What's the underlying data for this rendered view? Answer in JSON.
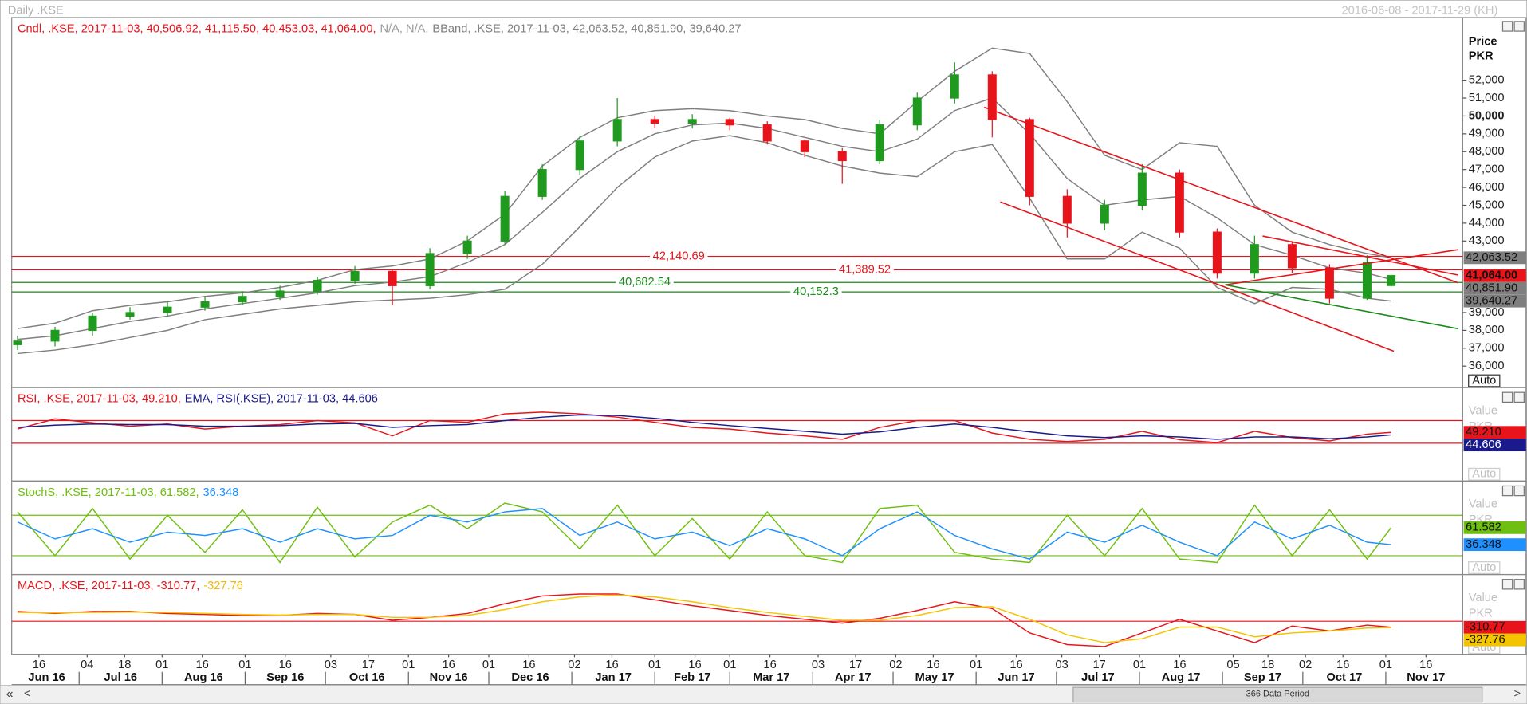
{
  "header": {
    "title": "Daily .KSE",
    "range": "2016-06-08 - 2017-11-29 (KH)"
  },
  "footer": {
    "data_period": "366 Data Period",
    "first": "«",
    "prev": "<",
    "next": ">"
  },
  "x_axis": {
    "xlim": [
      "2016-06-08",
      "2017-11-29"
    ],
    "x": [
      "2016-06-08",
      "2016-06-22",
      "2016-07-06",
      "2016-07-20",
      "2016-08-03",
      "2016-08-17",
      "2016-08-31",
      "2016-09-14",
      "2016-09-28",
      "2016-10-12",
      "2016-10-26",
      "2016-11-09",
      "2016-11-23",
      "2016-12-07",
      "2016-12-21",
      "2017-01-04",
      "2017-01-18",
      "2017-02-01",
      "2017-02-15",
      "2017-03-01",
      "2017-03-15",
      "2017-03-29",
      "2017-04-12",
      "2017-04-26",
      "2017-05-10",
      "2017-05-24",
      "2017-06-07",
      "2017-06-21",
      "2017-07-05",
      "2017-07-19",
      "2017-08-02",
      "2017-08-16",
      "2017-08-30",
      "2017-09-13",
      "2017-09-27",
      "2017-10-11",
      "2017-10-25",
      "2017-11-03"
    ],
    "xticks": [
      {
        "value": "2016-06-16",
        "label": "16"
      },
      {
        "value": "2016-07-04",
        "label": "04"
      },
      {
        "value": "2016-07-18",
        "label": "18"
      },
      {
        "value": "2016-08-01",
        "label": "01"
      },
      {
        "value": "2016-08-16",
        "label": "16"
      },
      {
        "value": "2016-09-01",
        "label": "01"
      },
      {
        "value": "2016-09-16",
        "label": "16"
      },
      {
        "value": "2016-10-03",
        "label": "03"
      },
      {
        "value": "2016-10-17",
        "label": "17"
      },
      {
        "value": "2016-11-01",
        "label": "01"
      },
      {
        "value": "2016-11-16",
        "label": "16"
      },
      {
        "value": "2016-12-01",
        "label": "01"
      },
      {
        "value": "2016-12-16",
        "label": "16"
      },
      {
        "value": "2017-01-02",
        "label": "02"
      },
      {
        "value": "2017-01-16",
        "label": "16"
      },
      {
        "value": "2017-02-01",
        "label": "01"
      },
      {
        "value": "2017-02-16",
        "label": "16"
      },
      {
        "value": "2017-03-01",
        "label": "01"
      },
      {
        "value": "2017-03-16",
        "label": "16"
      },
      {
        "value": "2017-04-03",
        "label": "03"
      },
      {
        "value": "2017-04-17",
        "label": "17"
      },
      {
        "value": "2017-05-02",
        "label": "02"
      },
      {
        "value": "2017-05-16",
        "label": "16"
      },
      {
        "value": "2017-06-01",
        "label": "01"
      },
      {
        "value": "2017-06-16",
        "label": "16"
      },
      {
        "value": "2017-07-03",
        "label": "03"
      },
      {
        "value": "2017-07-17",
        "label": "17"
      },
      {
        "value": "2017-08-01",
        "label": "01"
      },
      {
        "value": "2017-08-16",
        "label": "16"
      },
      {
        "value": "2017-09-05",
        "label": "05"
      },
      {
        "value": "2017-09-18",
        "label": "18"
      },
      {
        "value": "2017-10-02",
        "label": "02"
      },
      {
        "value": "2017-10-16",
        "label": "16"
      },
      {
        "value": "2017-11-01",
        "label": "01"
      },
      {
        "value": "2017-11-16",
        "label": "16"
      }
    ],
    "month_labels": [
      {
        "value": "2016-06",
        "label": "Jun 16"
      },
      {
        "value": "2016-07",
        "label": "Jul 16"
      },
      {
        "value": "2016-08",
        "label": "Aug 16"
      },
      {
        "value": "2016-09",
        "label": "Sep 16"
      },
      {
        "value": "2016-10",
        "label": "Oct 16"
      },
      {
        "value": "2016-11",
        "label": "Nov 16"
      },
      {
        "value": "2016-12",
        "label": "Dec 16"
      },
      {
        "value": "2017-01",
        "label": "Jan 17"
      },
      {
        "value": "2017-02",
        "label": "Feb 17"
      },
      {
        "value": "2017-03",
        "label": "Mar 17"
      },
      {
        "value": "2017-04",
        "label": "Apr 17"
      },
      {
        "value": "2017-05",
        "label": "May 17"
      },
      {
        "value": "2017-06",
        "label": "Jun 17"
      },
      {
        "value": "2017-07",
        "label": "Jul 17"
      },
      {
        "value": "2017-08",
        "label": "Aug 17"
      },
      {
        "value": "2017-09",
        "label": "Sep 17"
      },
      {
        "value": "2017-10",
        "label": "Oct 17"
      },
      {
        "value": "2017-11",
        "label": "Nov 17"
      }
    ]
  },
  "chart_data": [
    {
      "type": "candlestick",
      "legend": [
        {
          "text": "Cndl, .KSE, 2017-11-03, 40,506.92, 41,115.50, 40,453.03, 41,064.00,",
          "color": "#e8141b"
        },
        {
          "text": "N/A, N/A,",
          "color": "#9a9a9a"
        },
        {
          "text": "BBand, .KSE, 2017-11-03, 42,063.52, 40,851.90, 39,640.27",
          "color": "#808080"
        }
      ],
      "ylabel": "Price",
      "yunit": "PKR",
      "scale_mode": "Auto",
      "ylim": [
        34800,
        55400
      ],
      "yticks": [
        {
          "value": 36000,
          "label": "36,000"
        },
        {
          "value": 37000,
          "label": "37,000"
        },
        {
          "value": 38000,
          "label": "38,000"
        },
        {
          "value": 39000,
          "label": "39,000"
        },
        {
          "value": 43000,
          "label": "43,000"
        },
        {
          "value": 44000,
          "label": "44,000"
        },
        {
          "value": 45000,
          "label": "45,000"
        },
        {
          "value": 46000,
          "label": "46,000"
        },
        {
          "value": 47000,
          "label": "47,000"
        },
        {
          "value": 48000,
          "label": "48,000"
        },
        {
          "value": 49000,
          "label": "49,000"
        },
        {
          "value": 50000,
          "label": "50,000"
        },
        {
          "value": 51000,
          "label": "51,000"
        },
        {
          "value": 52000,
          "label": "52,000"
        }
      ],
      "candles": {
        "up_color": "#1f9a1f",
        "down_color": "#e8141b",
        "label_color": "#e8141b",
        "value_label": "41,064.00",
        "open": [
          37200,
          37400,
          38000,
          38800,
          39000,
          39300,
          39600,
          39900,
          40200,
          40800,
          41300,
          40500,
          42300,
          43000,
          45500,
          47000,
          48600,
          49800,
          49600,
          49800,
          49500,
          48600,
          48000,
          47500,
          49500,
          51000,
          52300,
          49800,
          45500,
          44000,
          45000,
          46800,
          43500,
          41200,
          42800,
          41500,
          39800,
          40506.92
        ],
        "high": [
          37700,
          38200,
          39000,
          39300,
          39600,
          39900,
          40200,
          40500,
          41000,
          41600,
          41400,
          42600,
          43300,
          45800,
          47300,
          48900,
          51000,
          50000,
          50100,
          49900,
          49700,
          48700,
          48200,
          49800,
          51300,
          53000,
          52500,
          49900,
          45900,
          45300,
          47300,
          47000,
          43700,
          43300,
          43000,
          41700,
          42200,
          41115.5
        ],
        "low": [
          36900,
          37100,
          37700,
          38600,
          38800,
          39100,
          39400,
          39700,
          40000,
          40600,
          39400,
          40300,
          42000,
          42800,
          45300,
          46700,
          48300,
          49300,
          49300,
          49200,
          48400,
          47700,
          46200,
          47300,
          49200,
          50700,
          48800,
          45000,
          43200,
          43600,
          44700,
          43200,
          40900,
          40900,
          41200,
          39500,
          39700,
          40453.03
        ],
        "close": [
          37400,
          38000,
          38800,
          39000,
          39300,
          39600,
          39900,
          40200,
          40800,
          41300,
          40500,
          42300,
          43000,
          45500,
          47000,
          48600,
          49800,
          49600,
          49800,
          49500,
          48600,
          48000,
          47500,
          49500,
          51000,
          52300,
          49800,
          45500,
          44000,
          45000,
          46800,
          43500,
          41200,
          42800,
          41500,
          39800,
          41800,
          41064.0
        ]
      },
      "series": [
        {
          "color": "#7f7f7f",
          "value_label": "42,063.52",
          "values": [
            38100,
            38400,
            39100,
            39400,
            39600,
            39900,
            40100,
            40400,
            40800,
            41400,
            41600,
            42000,
            43000,
            44500,
            47200,
            48800,
            49900,
            50300,
            50400,
            50300,
            50000,
            49800,
            49300,
            49000,
            50800,
            52500,
            53800,
            53500,
            50800,
            47800,
            47000,
            48500,
            48300,
            45000,
            43500,
            42800,
            42300,
            42063.52
          ]
        },
        {
          "color": "#7f7f7f",
          "value_label": "40,851.90",
          "values": [
            37500,
            37700,
            38100,
            38500,
            38800,
            39200,
            39500,
            39800,
            40100,
            40500,
            40700,
            41000,
            41800,
            42800,
            44600,
            46500,
            48000,
            49000,
            49500,
            49600,
            49300,
            48800,
            48300,
            48000,
            48700,
            50300,
            51000,
            49000,
            46500,
            45000,
            45300,
            45500,
            44300,
            42800,
            42200,
            41500,
            41200,
            40851.9
          ]
        },
        {
          "color": "#7f7f7f",
          "value_label": "39,640.27",
          "values": [
            36700,
            36900,
            37200,
            37600,
            38000,
            38600,
            38900,
            39200,
            39400,
            39600,
            39700,
            39800,
            40000,
            40300,
            41700,
            43800,
            46000,
            47700,
            48600,
            48900,
            48500,
            47800,
            47200,
            46800,
            46600,
            48000,
            48400,
            45400,
            42000,
            42000,
            43500,
            42600,
            40400,
            39500,
            40400,
            40300,
            39800,
            39640.27
          ]
        }
      ],
      "levels": [
        {
          "value": 42140.69,
          "label": "42,140.69",
          "color": "#e8141b"
        },
        {
          "value": 41389.52,
          "label": "41,389.52",
          "color": "#e8141b"
        },
        {
          "value": 40682.54,
          "label": "40,682.54",
          "color": "#1a8a1a"
        },
        {
          "value": 40152.3,
          "label": "40,152.3",
          "color": "#1a8a1a"
        }
      ],
      "trendlines": [
        {
          "x": [
            "2017-06-04",
            "2017-11-28"
          ],
          "y": [
            50486,
            40658
          ],
          "color": "#e8141b"
        },
        {
          "x": [
            "2017-06-10",
            "2017-11-04"
          ],
          "y": [
            45190,
            36836
          ],
          "color": "#e8141b"
        },
        {
          "x": [
            "2017-09-02",
            "2017-11-28"
          ],
          "y": [
            40549,
            42514
          ],
          "color": "#e8141b"
        },
        {
          "x": [
            "2017-09-02",
            "2017-11-28"
          ],
          "y": [
            40549,
            38092
          ],
          "color": "#1a8a1a"
        },
        {
          "x": [
            "2017-09-16",
            "2017-11-28"
          ],
          "y": [
            43279,
            41095
          ],
          "color": "#e8141b"
        }
      ]
    },
    {
      "type": "line",
      "legend": [
        {
          "text": "RSI, .KSE, 2017-11-03, 49.210,",
          "color": "#e8141b"
        },
        {
          "text": "EMA, RSI(.KSE), 2017-11-03, 44.606",
          "color": "#1a1a8c"
        }
      ],
      "ylabel": "Value",
      "yunit": "PKR",
      "scale_mode": "Auto",
      "ylim": [
        -37,
        125
      ],
      "levels": [
        {
          "value": 70,
          "color": "#e8141b"
        },
        {
          "value": 30,
          "color": "#e8141b"
        }
      ],
      "series": [
        {
          "color": "#e8141b",
          "value_label": "49.210",
          "values": [
            55,
            73,
            66,
            60,
            64,
            55,
            60,
            63,
            70,
            66,
            43,
            70,
            67,
            82,
            85,
            82,
            76,
            67,
            58,
            55,
            48,
            43,
            37,
            58,
            70,
            70,
            48,
            37,
            33,
            37,
            51,
            36,
            31,
            51,
            40,
            34,
            46,
            49.21
          ]
        },
        {
          "color": "#1a1a8c",
          "value_label": "44.606",
          "values": [
            58,
            62,
            64,
            63,
            63,
            60,
            60,
            61,
            64,
            65,
            58,
            61,
            63,
            70,
            76,
            80,
            79,
            74,
            67,
            61,
            56,
            51,
            46,
            50,
            58,
            64,
            58,
            50,
            43,
            40,
            43,
            41,
            37,
            41,
            41,
            38,
            41,
            44.606
          ]
        }
      ]
    },
    {
      "type": "line",
      "legend": [
        {
          "text": "StochS, .KSE, 2017-11-03, 61.582,",
          "color": "#6fbf12"
        },
        {
          "text": "36.348",
          "color": "#1e90ff"
        }
      ],
      "ylabel": "Value",
      "yunit": "PKR",
      "scale_mode": "Auto",
      "ylim": [
        -8,
        128
      ],
      "levels": [
        {
          "value": 80,
          "color": "#6fbf12"
        },
        {
          "value": 20,
          "color": "#6fbf12"
        }
      ],
      "series": [
        {
          "color": "#6fbf12",
          "value_label": "61.582",
          "values": [
            85,
            20,
            90,
            15,
            80,
            25,
            88,
            10,
            92,
            18,
            70,
            95,
            60,
            98,
            85,
            30,
            95,
            20,
            75,
            15,
            85,
            20,
            10,
            90,
            95,
            25,
            15,
            10,
            80,
            20,
            90,
            15,
            10,
            95,
            20,
            88,
            15,
            61.582
          ]
        },
        {
          "color": "#1e90ff",
          "value_label": "36.348",
          "values": [
            70,
            45,
            60,
            40,
            55,
            50,
            60,
            40,
            60,
            45,
            50,
            80,
            70,
            85,
            90,
            50,
            70,
            45,
            55,
            35,
            60,
            45,
            20,
            60,
            85,
            50,
            30,
            15,
            55,
            40,
            65,
            40,
            20,
            70,
            45,
            65,
            40,
            36.348
          ]
        }
      ]
    },
    {
      "type": "line",
      "legend": [
        {
          "text": "MACD, .KSE, 2017-11-03, -310.77,",
          "color": "#e8141b"
        },
        {
          "text": "-327.76",
          "color": "#f0b800"
        }
      ],
      "ylabel": "Value",
      "yunit": "PKR",
      "scale_mode": "Auto",
      "ylim": [
        -1700,
        2300
      ],
      "levels": [
        {
          "value": 0,
          "color": "#e8141b"
        }
      ],
      "series": [
        {
          "color": "#e8141b",
          "value_label": "-310.77",
          "values": [
            500,
            400,
            500,
            500,
            400,
            350,
            300,
            300,
            400,
            350,
            50,
            200,
            400,
            900,
            1300,
            1400,
            1400,
            1100,
            800,
            550,
            300,
            100,
            -100,
            150,
            550,
            1000,
            650,
            -600,
            -1200,
            -1300,
            -600,
            100,
            -500,
            -1100,
            -250,
            -500,
            -200,
            -310.77
          ]
        },
        {
          "color": "#f5c400",
          "value_label": "-327.76",
          "values": [
            450,
            430,
            450,
            470,
            450,
            400,
            350,
            320,
            350,
            350,
            200,
            200,
            300,
            600,
            1000,
            1250,
            1350,
            1250,
            1000,
            700,
            450,
            250,
            50,
            50,
            300,
            700,
            750,
            100,
            -700,
            -1100,
            -900,
            -300,
            -300,
            -800,
            -600,
            -500,
            -350,
            -327.76
          ]
        }
      ]
    }
  ]
}
